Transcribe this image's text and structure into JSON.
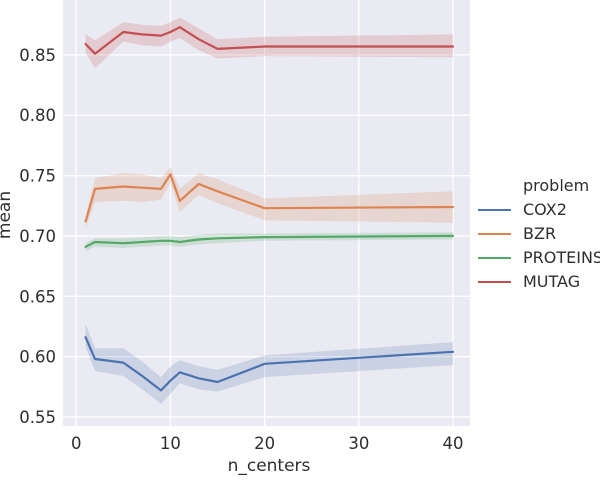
{
  "figure": {
    "background": "#ffffff",
    "plot_background": "#eaeaf2",
    "grid_color": "#ffffff",
    "text_color": "#2e2e2e"
  },
  "chart_data": {
    "type": "line",
    "title": "",
    "xlabel": "n_centers",
    "ylabel": "mean",
    "grid": true,
    "legend_title": "problem",
    "legend_position": "right-outside",
    "x_ticks": [
      0,
      10,
      20,
      30,
      40
    ],
    "y_ticks": [
      0.55,
      0.6,
      0.65,
      0.7,
      0.75,
      0.8,
      0.85
    ],
    "xlim": [
      -1.4,
      41.8
    ],
    "ylim": [
      0.5425,
      0.8955
    ],
    "x": [
      1,
      2,
      5,
      7,
      9,
      10,
      11,
      13,
      15,
      20,
      40
    ],
    "series": [
      {
        "name": "COX2",
        "color": "#4c72b0",
        "mean": [
          0.616,
          0.598,
          0.595,
          0.584,
          0.572,
          0.58,
          0.587,
          0.582,
          0.579,
          0.594,
          0.604
        ],
        "band_low": [
          0.608,
          0.588,
          0.584,
          0.573,
          0.561,
          0.569,
          0.578,
          0.573,
          0.571,
          0.583,
          0.593
        ],
        "band_high": [
          0.627,
          0.607,
          0.607,
          0.596,
          0.583,
          0.592,
          0.597,
          0.592,
          0.589,
          0.601,
          0.612
        ]
      },
      {
        "name": "BZR",
        "color": "#dd8452",
        "mean": [
          0.712,
          0.739,
          0.741,
          0.74,
          0.739,
          0.751,
          0.729,
          0.743,
          0.737,
          0.723,
          0.724
        ],
        "band_low": [
          0.707,
          0.728,
          0.729,
          0.728,
          0.73,
          0.744,
          0.72,
          0.734,
          0.727,
          0.713,
          0.711
        ],
        "band_high": [
          0.716,
          0.748,
          0.752,
          0.751,
          0.748,
          0.757,
          0.739,
          0.752,
          0.747,
          0.731,
          0.737
        ]
      },
      {
        "name": "PROTEINS",
        "color": "#55a868",
        "mean": [
          0.691,
          0.695,
          0.694,
          0.695,
          0.696,
          0.696,
          0.695,
          0.697,
          0.698,
          0.699,
          0.7
        ],
        "band_low": [
          0.687,
          0.691,
          0.69,
          0.691,
          0.692,
          0.692,
          0.691,
          0.693,
          0.694,
          0.696,
          0.697
        ],
        "band_high": [
          0.694,
          0.698,
          0.698,
          0.699,
          0.7,
          0.7,
          0.699,
          0.701,
          0.702,
          0.702,
          0.703
        ]
      },
      {
        "name": "MUTAG",
        "color": "#c44e52",
        "mean": [
          0.859,
          0.851,
          0.869,
          0.867,
          0.866,
          0.869,
          0.873,
          0.863,
          0.855,
          0.857,
          0.857
        ],
        "band_low": [
          0.852,
          0.839,
          0.861,
          0.858,
          0.857,
          0.861,
          0.864,
          0.854,
          0.847,
          0.849,
          0.848
        ],
        "band_high": [
          0.867,
          0.862,
          0.877,
          0.875,
          0.874,
          0.877,
          0.881,
          0.872,
          0.863,
          0.865,
          0.867
        ]
      }
    ]
  }
}
